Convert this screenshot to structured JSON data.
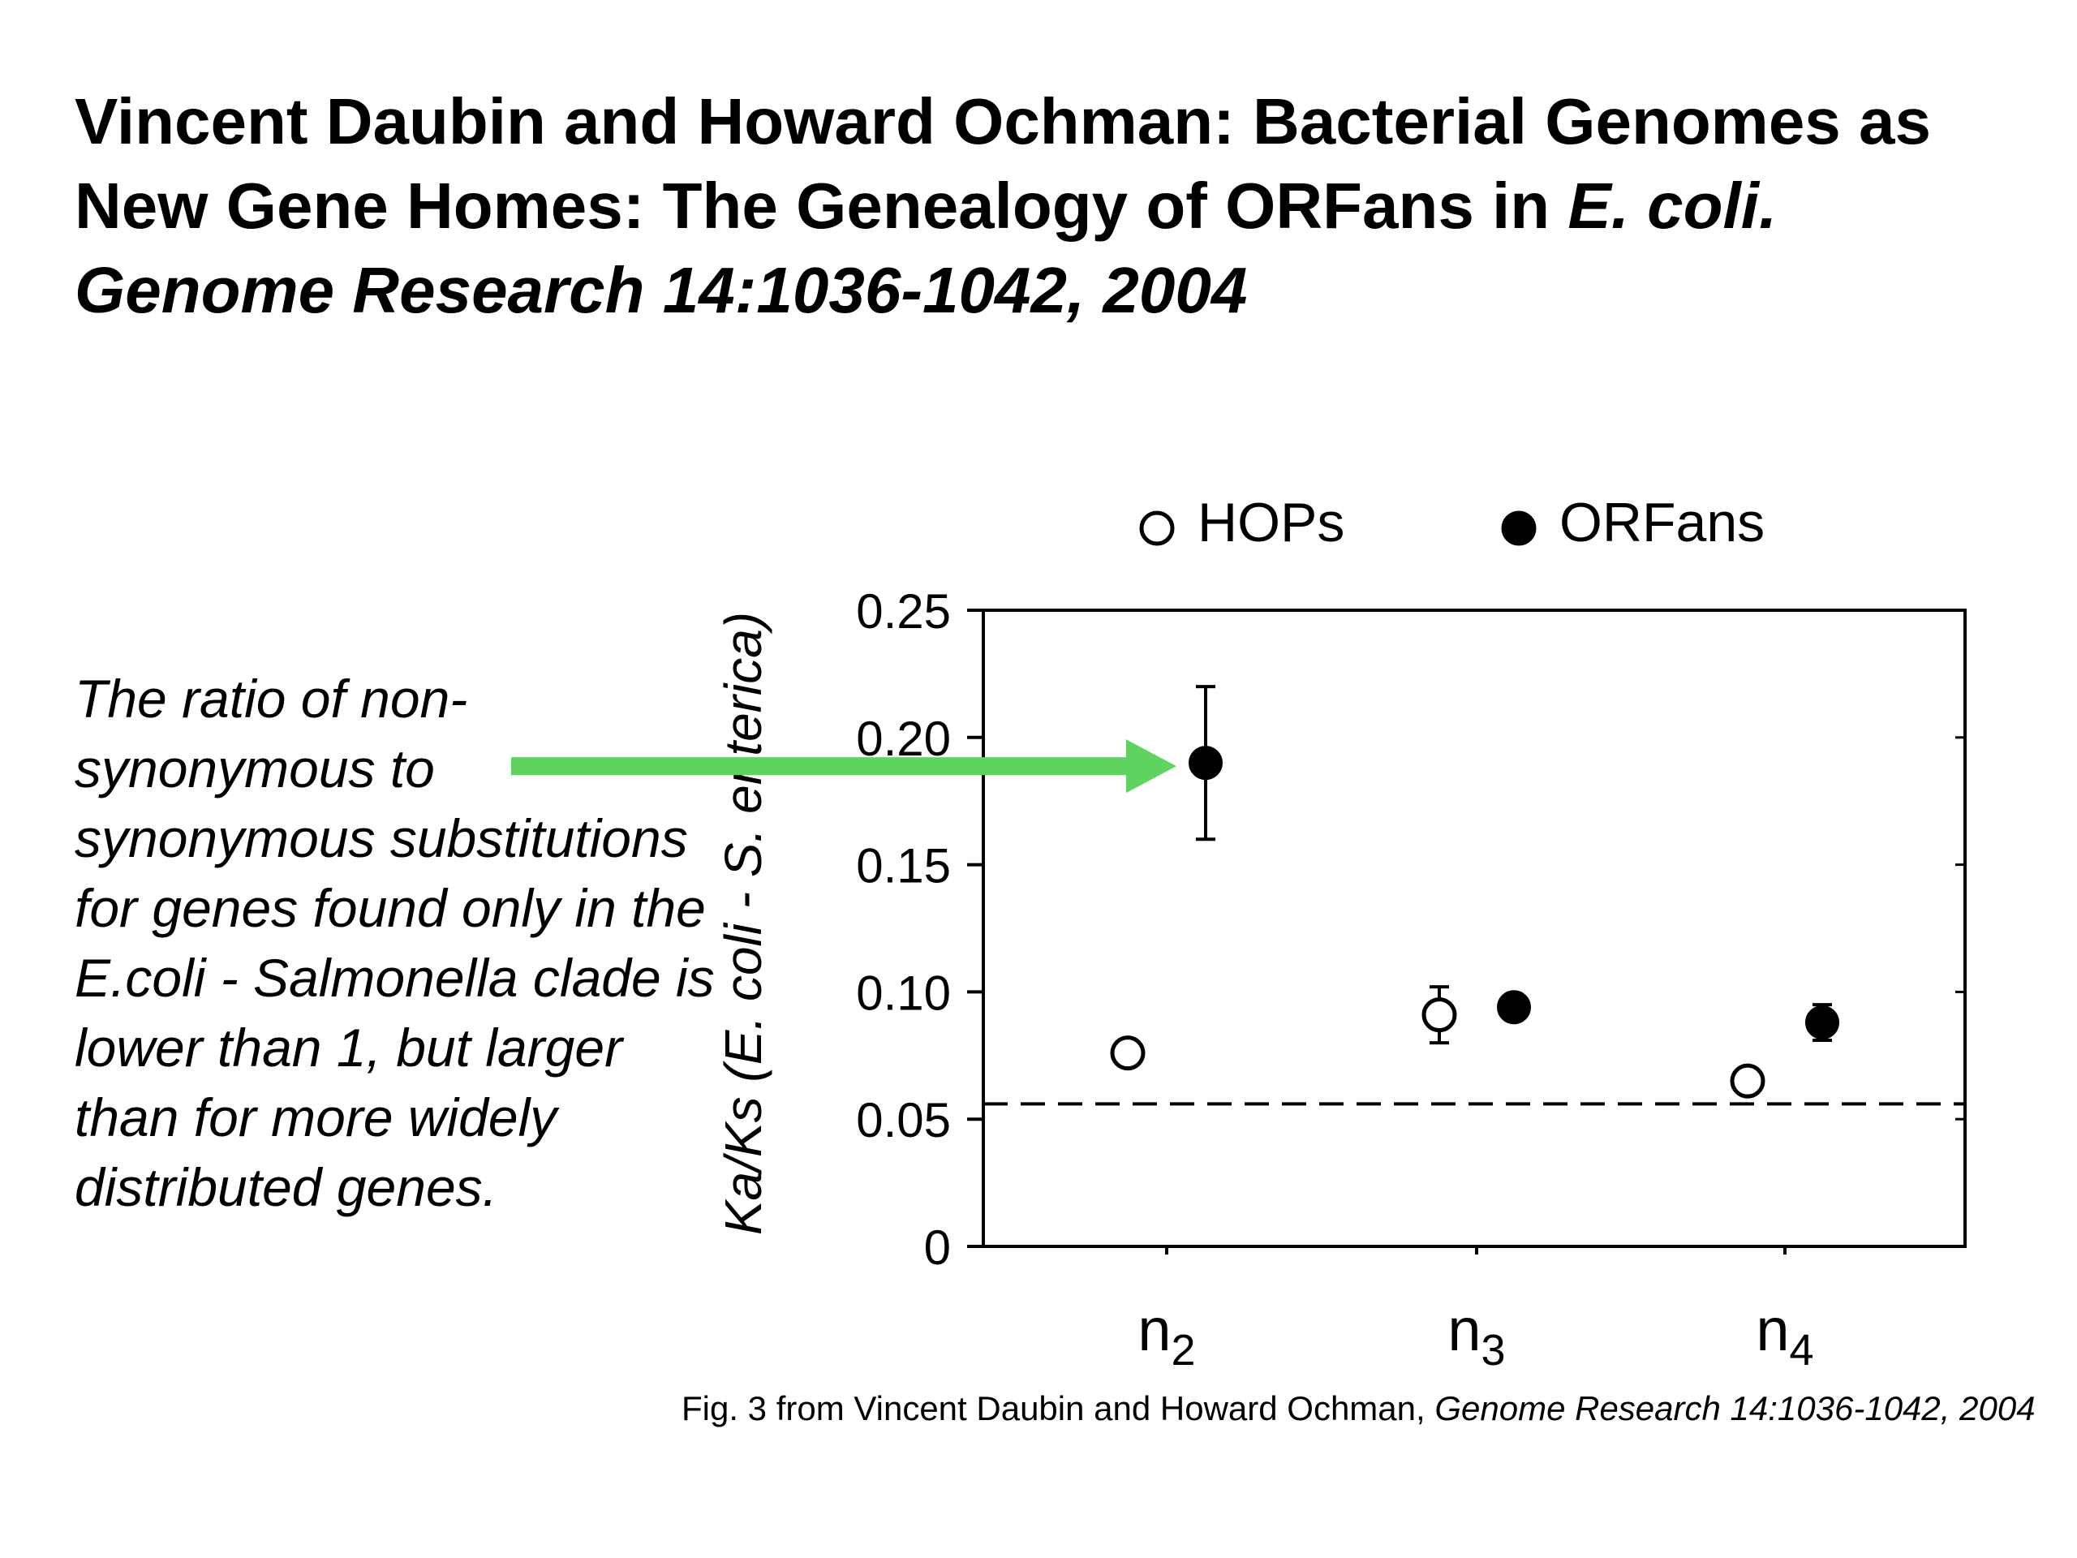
{
  "slide": {
    "title_part1": "Vincent Daubin and Howard Ochman: Bacterial Genomes as New Gene Homes: The Genealogy of ORFans in ",
    "title_part2": "E. coli.  Genome Research 14:1036-1042, 2004",
    "caption": "The ratio of non-synonymous to synonymous substitutions for genes found only in the E.coli - Salmonella clade is lower than 1, but larger than for more widely distributed genes.",
    "footer_part1": "Fig. 3 from Vincent Daubin and Howard Ochman,  ",
    "footer_part2": "Genome Research 14:1036-1042, 2004"
  },
  "colors": {
    "arrow": "#5fd35f",
    "marker": "#000000",
    "axis": "#000000"
  },
  "chart_data": {
    "type": "scatter",
    "categories": [
      "n",
      "n",
      "n"
    ],
    "category_subscripts": [
      "2",
      "3",
      "4"
    ],
    "ylabel": "Ka/Ks (E. coli - S. enterica)",
    "yticks": [
      "0",
      "0.05",
      "0.10",
      "0.15",
      "0.20",
      "0.25"
    ],
    "ytick_values": [
      0,
      0.05,
      0.1,
      0.15,
      0.2,
      0.25
    ],
    "ylim": [
      0,
      0.25
    ],
    "legend_position": "top",
    "series": [
      {
        "name": "HOPs",
        "marker": "open-circle",
        "values": [
          0.076,
          0.091,
          0.065
        ],
        "error": [
          0.003,
          0.011,
          0.002
        ]
      },
      {
        "name": "ORFans",
        "marker": "filled-circle",
        "values": [
          0.19,
          0.094,
          0.088
        ],
        "error": [
          0.03,
          0.004,
          0.007
        ]
      }
    ],
    "reference_line": 0.056,
    "annotation_arrow_target": {
      "category_index": 0,
      "series": "ORFans"
    }
  }
}
